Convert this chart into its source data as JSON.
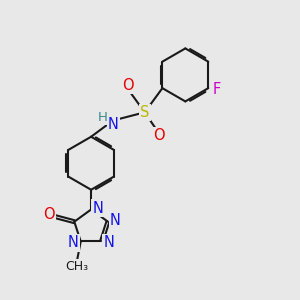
{
  "bg_color": "#e8e8e8",
  "bond_color": "#1a1a1a",
  "atom_colors": {
    "N": "#1414e6",
    "O": "#e60000",
    "S": "#b8b800",
    "F": "#cc00cc",
    "H": "#3a8a8a",
    "C": "#1a1a1a"
  },
  "font_size_atom": 10.5,
  "font_size_small": 9,
  "font_size_h": 9.5
}
